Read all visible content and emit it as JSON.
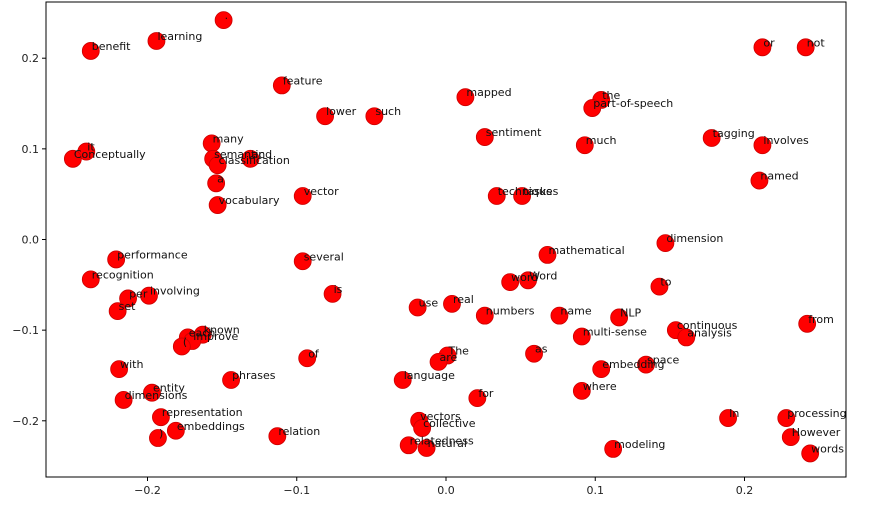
{
  "chart_data": {
    "type": "scatter",
    "title": "",
    "xlabel": "",
    "ylabel": "",
    "xlim": [
      -0.268,
      0.268
    ],
    "ylim": [
      -0.262,
      0.262
    ],
    "xticks": [
      -0.2,
      -0.1,
      0.0,
      0.1,
      0.2
    ],
    "xtick_labels": [
      "−0.2",
      "−0.1",
      "0.0",
      "0.1",
      "0.2"
    ],
    "yticks": [
      -0.2,
      -0.1,
      0.0,
      0.1,
      0.2
    ],
    "ytick_labels": [
      "−0.2",
      "−0.1",
      "0.0",
      "0.1",
      "0.2"
    ],
    "grid": false,
    "marker_color": "#ff0000",
    "marker_edge": "#cc0000",
    "points": [
      {
        "label": ".",
        "x": -0.149,
        "y": 0.242
      },
      {
        "label": "benefit",
        "x": -0.238,
        "y": 0.208
      },
      {
        "label": "learning",
        "x": -0.194,
        "y": 0.219
      },
      {
        "label": "feature",
        "x": -0.11,
        "y": 0.17
      },
      {
        "label": "mapped",
        "x": 0.013,
        "y": 0.157
      },
      {
        "label": "the",
        "x": 0.104,
        "y": 0.154
      },
      {
        "label": "part-of-speech",
        "x": 0.098,
        "y": 0.145
      },
      {
        "label": "or",
        "x": 0.212,
        "y": 0.212
      },
      {
        "label": "not",
        "x": 0.241,
        "y": 0.212
      },
      {
        "label": "lower",
        "x": -0.081,
        "y": 0.136
      },
      {
        "label": "such",
        "x": -0.048,
        "y": 0.136
      },
      {
        "label": "sentiment",
        "x": 0.026,
        "y": 0.113
      },
      {
        "label": "much",
        "x": 0.093,
        "y": 0.104
      },
      {
        "label": "tagging",
        "x": 0.178,
        "y": 0.112
      },
      {
        "label": "involves",
        "x": 0.212,
        "y": 0.104
      },
      {
        "label": "many",
        "x": -0.157,
        "y": 0.106
      },
      {
        "label": "it",
        "x": -0.241,
        "y": 0.097
      },
      {
        "label": "Conceptually",
        "x": -0.25,
        "y": 0.089
      },
      {
        "label": "semantic",
        "x": -0.156,
        "y": 0.089
      },
      {
        "label": "and",
        "x": -0.131,
        "y": 0.089
      },
      {
        "label": "classification",
        "x": -0.153,
        "y": 0.082
      },
      {
        "label": "a",
        "x": -0.154,
        "y": 0.062
      },
      {
        "label": "named",
        "x": 0.21,
        "y": 0.065
      },
      {
        "label": "vector",
        "x": -0.096,
        "y": 0.048
      },
      {
        "label": "techniques",
        "x": 0.034,
        "y": 0.048
      },
      {
        "label": "tasks",
        "x": 0.051,
        "y": 0.048
      },
      {
        "label": "vocabulary",
        "x": -0.153,
        "y": 0.038
      },
      {
        "label": "dimension",
        "x": 0.147,
        "y": -0.004
      },
      {
        "label": "mathematical",
        "x": 0.068,
        "y": -0.017
      },
      {
        "label": "performance",
        "x": -0.221,
        "y": -0.022
      },
      {
        "label": "several",
        "x": -0.096,
        "y": -0.024
      },
      {
        "label": "recognition",
        "x": -0.238,
        "y": -0.044
      },
      {
        "label": "word",
        "x": 0.043,
        "y": -0.047
      },
      {
        "label": "Word",
        "x": 0.055,
        "y": -0.045
      },
      {
        "label": "to",
        "x": 0.143,
        "y": -0.052
      },
      {
        "label": "is",
        "x": -0.076,
        "y": -0.06
      },
      {
        "label": "per",
        "x": -0.213,
        "y": -0.065
      },
      {
        "label": "involving",
        "x": -0.199,
        "y": -0.062
      },
      {
        "label": "set",
        "x": -0.22,
        "y": -0.079
      },
      {
        "label": "real",
        "x": 0.004,
        "y": -0.071
      },
      {
        "label": "use",
        "x": -0.019,
        "y": -0.075
      },
      {
        "label": "numbers",
        "x": 0.026,
        "y": -0.084
      },
      {
        "label": "name",
        "x": 0.076,
        "y": -0.084
      },
      {
        "label": "NLP",
        "x": 0.116,
        "y": -0.086
      },
      {
        "label": "from",
        "x": 0.242,
        "y": -0.093
      },
      {
        "label": "each",
        "x": -0.173,
        "y": -0.108
      },
      {
        "label": "known",
        "x": -0.163,
        "y": -0.105
      },
      {
        "label": "improve",
        "x": -0.17,
        "y": -0.112
      },
      {
        "label": "(",
        "x": -0.177,
        "y": -0.118
      },
      {
        "label": "continuous",
        "x": 0.154,
        "y": -0.1
      },
      {
        "label": "analysis",
        "x": 0.161,
        "y": -0.108
      },
      {
        "label": "multi-sense",
        "x": 0.091,
        "y": -0.107
      },
      {
        "label": "of",
        "x": -0.093,
        "y": -0.131
      },
      {
        "label": "The",
        "x": 0.001,
        "y": -0.128
      },
      {
        "label": "are",
        "x": -0.005,
        "y": -0.135
      },
      {
        "label": "as",
        "x": 0.059,
        "y": -0.126
      },
      {
        "label": "space",
        "x": 0.134,
        "y": -0.138
      },
      {
        "label": "embedding",
        "x": 0.104,
        "y": -0.143
      },
      {
        "label": "with",
        "x": -0.219,
        "y": -0.143
      },
      {
        "label": "phrases",
        "x": -0.144,
        "y": -0.155
      },
      {
        "label": "language",
        "x": -0.029,
        "y": -0.155
      },
      {
        "label": "where",
        "x": 0.091,
        "y": -0.167
      },
      {
        "label": "entity",
        "x": -0.197,
        "y": -0.169
      },
      {
        "label": "dimensions",
        "x": -0.216,
        "y": -0.177
      },
      {
        "label": "for",
        "x": 0.021,
        "y": -0.175
      },
      {
        "label": "representation",
        "x": -0.191,
        "y": -0.196
      },
      {
        "label": "vectors",
        "x": -0.018,
        "y": -0.2
      },
      {
        "label": "collective",
        "x": -0.016,
        "y": -0.208
      },
      {
        "label": "In",
        "x": 0.189,
        "y": -0.197
      },
      {
        "label": "processing",
        "x": 0.228,
        "y": -0.197
      },
      {
        "label": "embeddings",
        "x": -0.181,
        "y": -0.211
      },
      {
        "label": "relation",
        "x": -0.113,
        "y": -0.217
      },
      {
        "label": ")",
        "x": -0.193,
        "y": -0.219
      },
      {
        "label": "relatedness",
        "x": -0.025,
        "y": -0.227
      },
      {
        "label": "natural",
        "x": -0.013,
        "y": -0.23
      },
      {
        "label": "modeling",
        "x": 0.112,
        "y": -0.231
      },
      {
        "label": "However",
        "x": 0.231,
        "y": -0.218
      },
      {
        "label": "words",
        "x": 0.244,
        "y": -0.236
      }
    ]
  }
}
